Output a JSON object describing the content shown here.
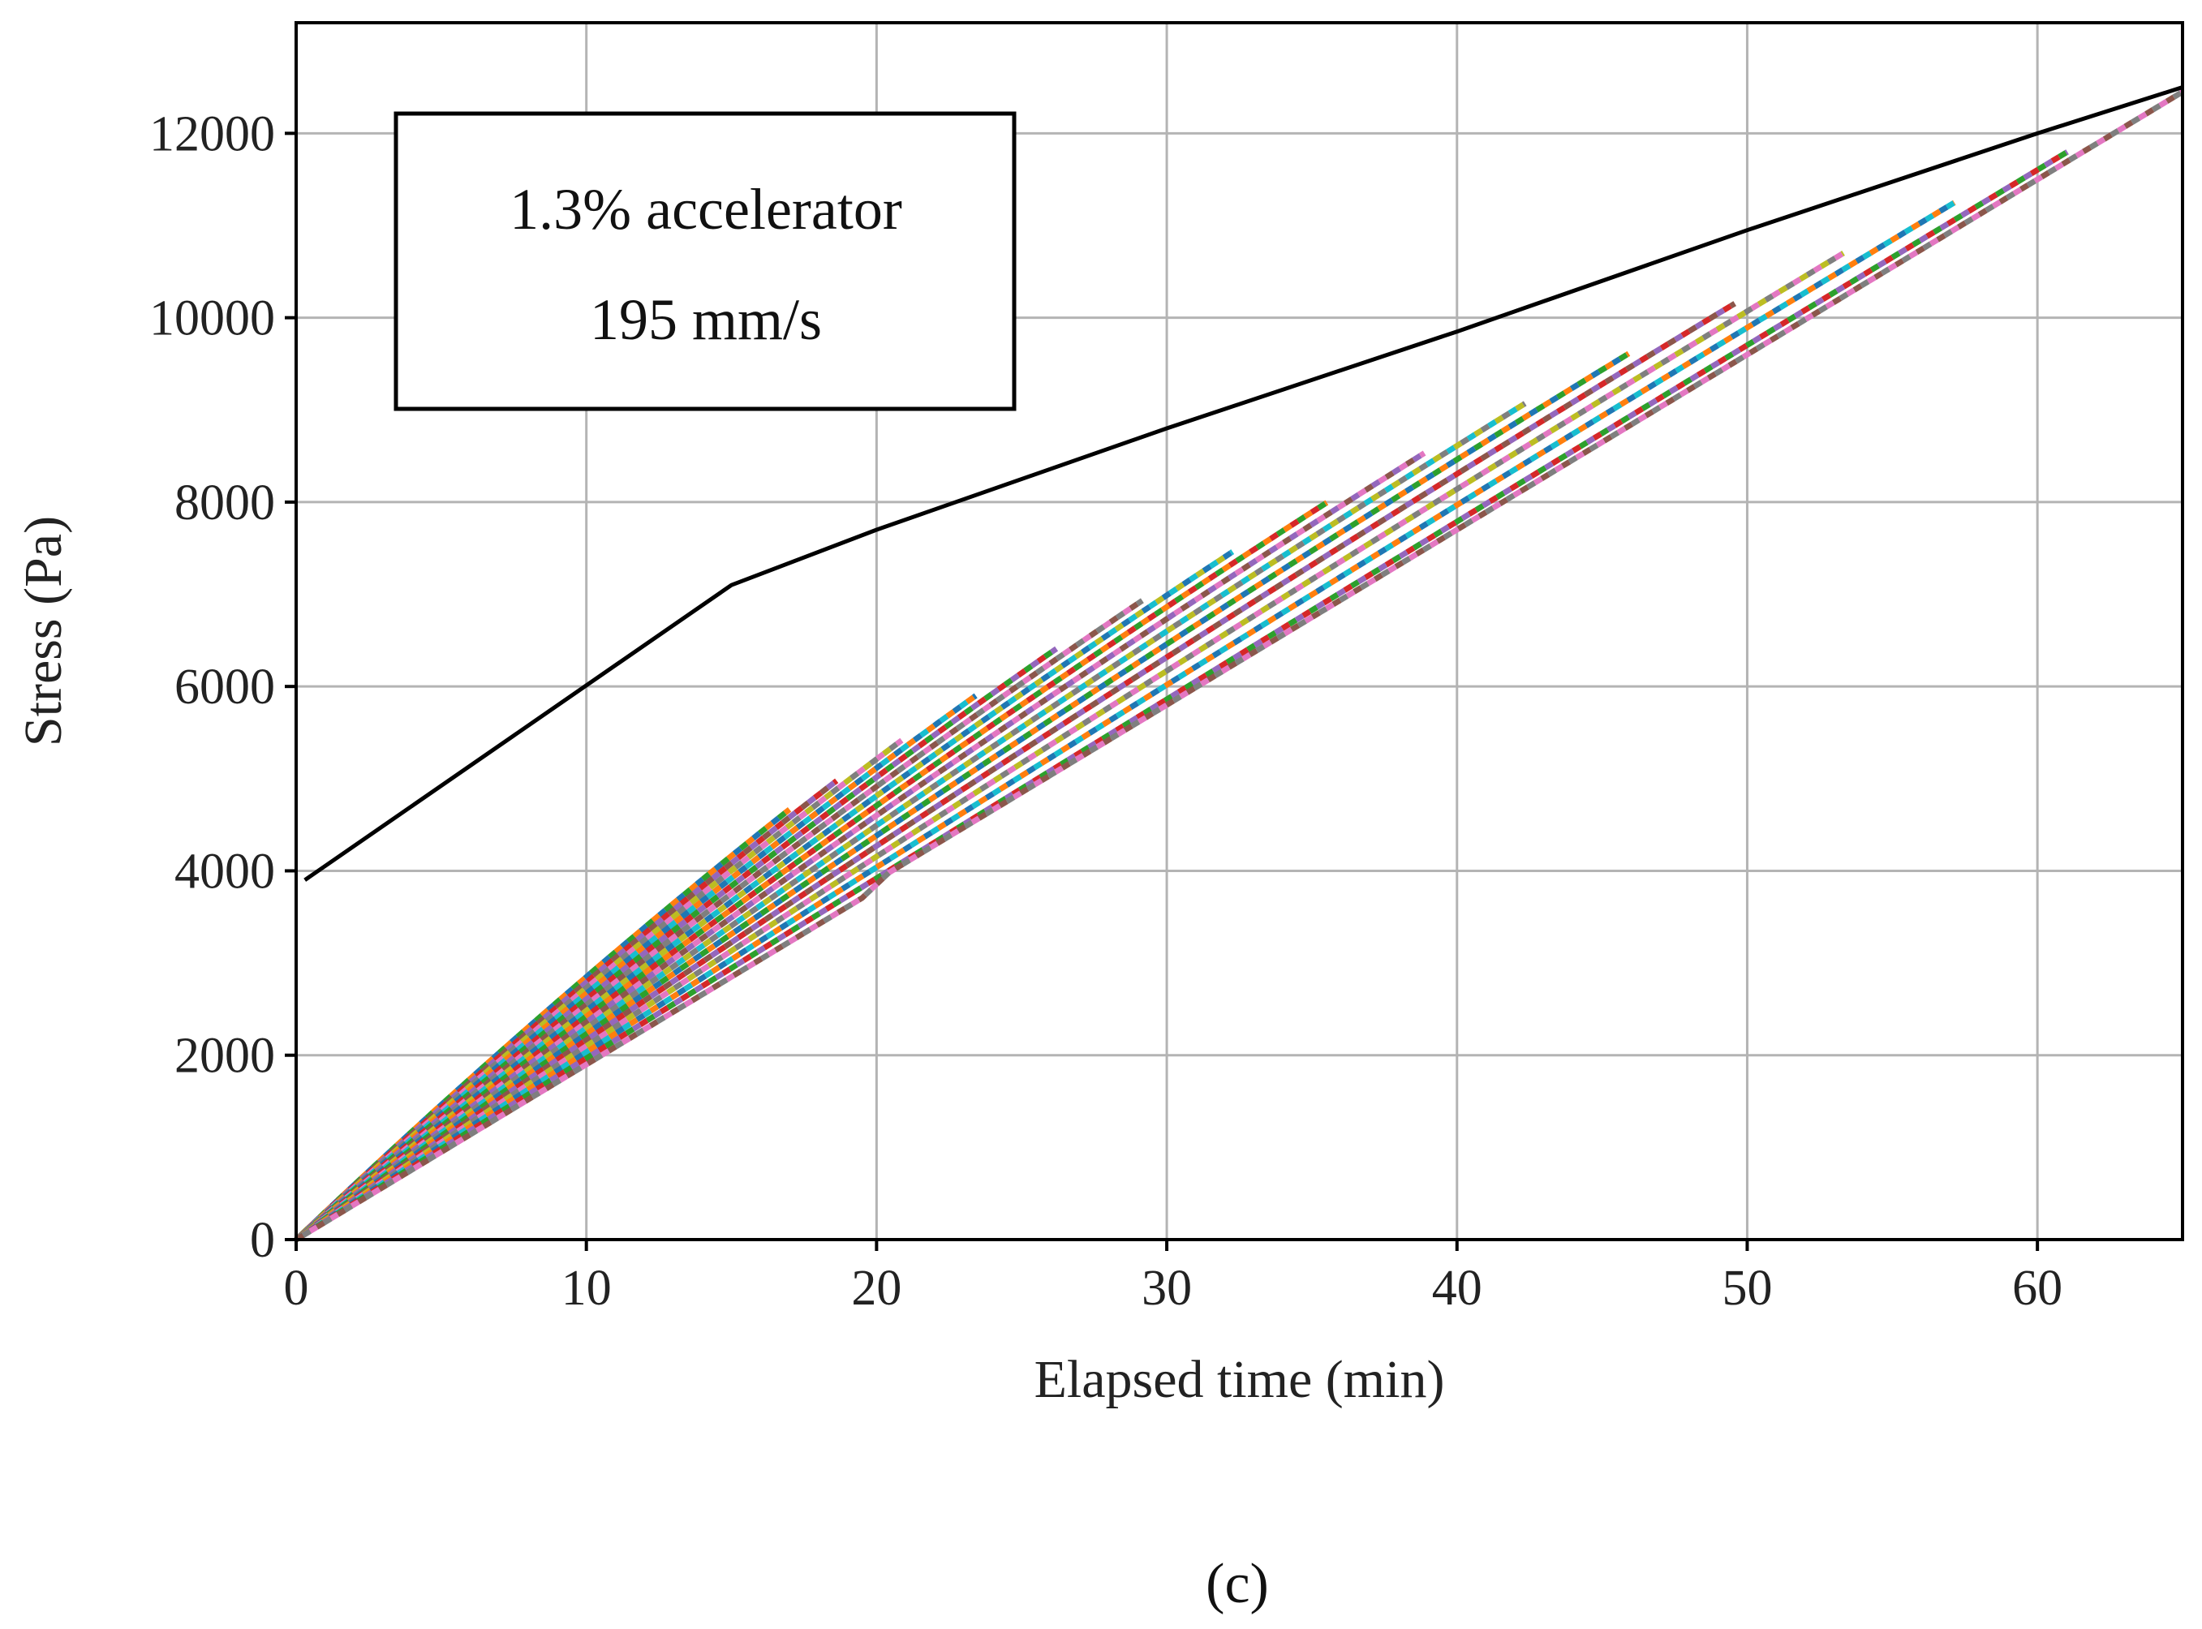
{
  "chart_data": {
    "type": "line",
    "title": "",
    "xlabel": "Elapsed time (min)",
    "ylabel": "Stress (Pa)",
    "xlim": [
      0,
      65
    ],
    "ylim": [
      0,
      13200
    ],
    "x_ticks": [
      0,
      10,
      20,
      30,
      40,
      50,
      60
    ],
    "y_ticks": [
      0,
      2000,
      4000,
      6000,
      8000,
      10000,
      12000
    ],
    "grid": true,
    "legend": "none",
    "annotation": {
      "lines": [
        "1.3% accelerator",
        "195 mm/s"
      ],
      "placement": "top-left"
    },
    "reference_series": {
      "color": "#000000",
      "x": [
        0.3,
        15,
        20,
        30,
        40,
        50,
        60,
        65
      ],
      "y": [
        3900,
        7100,
        7700,
        8800,
        9850,
        10950,
        12000,
        12500
      ]
    },
    "measured_series": {
      "style": "dense overlapping multicolor dashed curves",
      "count": 16,
      "x_end_min": 17,
      "x_end_max": 65,
      "colors": [
        "#1f77b4",
        "#ff7f0e",
        "#2ca02c",
        "#d62728",
        "#9467bd",
        "#8c564b",
        "#e377c2",
        "#7f7f7f",
        "#bcbd22",
        "#17becf"
      ]
    }
  },
  "caption": "(c)"
}
